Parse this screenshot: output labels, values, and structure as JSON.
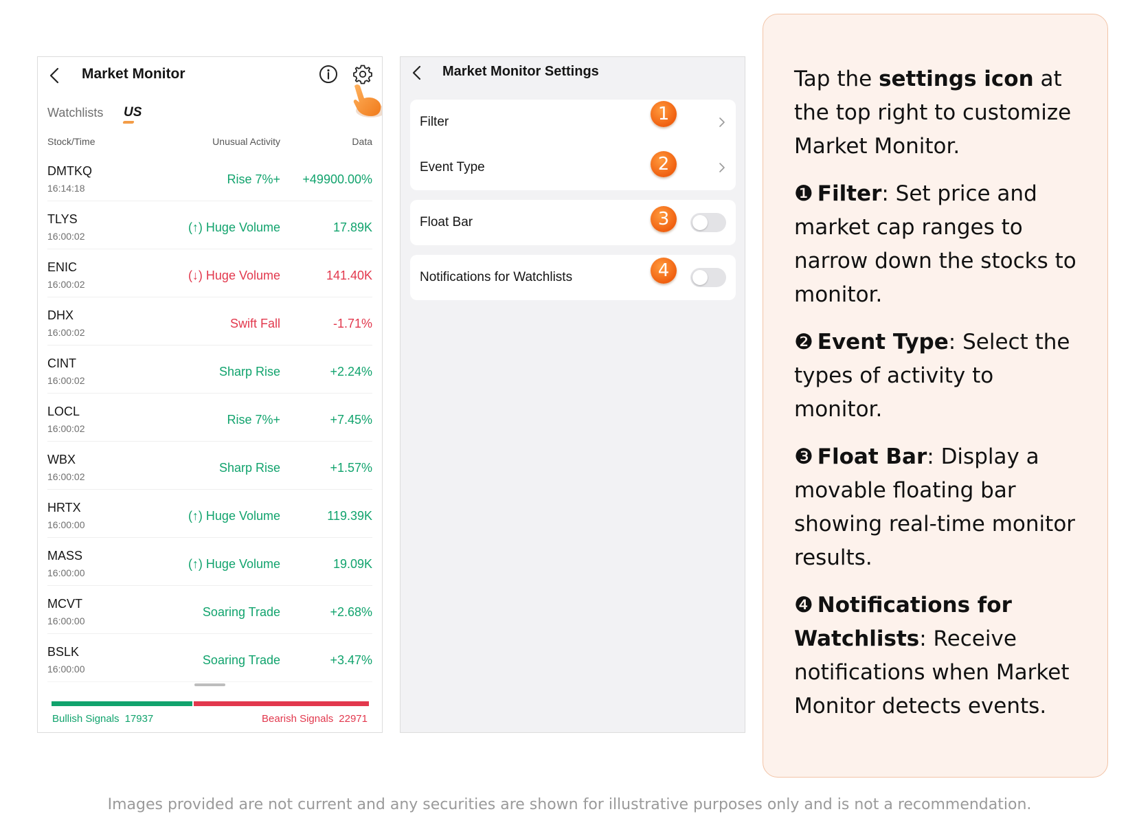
{
  "monitor": {
    "title": "Market Monitor",
    "tabs": [
      "Watchlists",
      "US"
    ],
    "columns": {
      "stock": "Stock/Time",
      "activity": "Unusual Activity",
      "data": "Data"
    },
    "rows": [
      {
        "symbol": "DMTKQ",
        "time": "16:14:18",
        "activity": "Rise 7%+",
        "value": "+49900.00%",
        "color": "green"
      },
      {
        "symbol": "TLYS",
        "time": "16:00:02",
        "activity": "(↑) Huge Volume",
        "value": "17.89K",
        "color": "green"
      },
      {
        "symbol": "ENIC",
        "time": "16:00:02",
        "activity": "(↓) Huge Volume",
        "value": "141.40K",
        "color": "red"
      },
      {
        "symbol": "DHX",
        "time": "16:00:02",
        "activity": "Swift Fall",
        "value": "-1.71%",
        "color": "red"
      },
      {
        "symbol": "CINT",
        "time": "16:00:02",
        "activity": "Sharp Rise",
        "value": "+2.24%",
        "color": "green"
      },
      {
        "symbol": "LOCL",
        "time": "16:00:02",
        "activity": "Rise 7%+",
        "value": "+7.45%",
        "color": "green"
      },
      {
        "symbol": "WBX",
        "time": "16:00:02",
        "activity": "Sharp Rise",
        "value": "+1.57%",
        "color": "green"
      },
      {
        "symbol": "HRTX",
        "time": "16:00:00",
        "activity": "(↑) Huge Volume",
        "value": "119.39K",
        "color": "green"
      },
      {
        "symbol": "MASS",
        "time": "16:00:00",
        "activity": "(↑) Huge Volume",
        "value": "19.09K",
        "color": "green"
      },
      {
        "symbol": "MCVT",
        "time": "16:00:00",
        "activity": "Soaring Trade",
        "value": "+2.68%",
        "color": "green"
      },
      {
        "symbol": "BSLK",
        "time": "16:00:00",
        "activity": "Soaring Trade",
        "value": "+3.47%",
        "color": "green"
      }
    ],
    "signals": {
      "bullish_label": "Bullish Signals",
      "bullish_count": "17937",
      "bearish_label": "Bearish Signals",
      "bearish_count": "22971",
      "bullish_fraction": 0.4439
    }
  },
  "settings": {
    "title": "Market Monitor Settings",
    "items": [
      {
        "label": "Filter",
        "badge": "1"
      },
      {
        "label": "Event Type",
        "badge": "2"
      },
      {
        "label": "Float Bar",
        "badge": "3",
        "toggle": false
      },
      {
        "label": "Notifications for Watchlists",
        "badge": "4",
        "toggle": false
      }
    ]
  },
  "description": {
    "intro_pre": "Tap the ",
    "intro_bold": "settings icon",
    "intro_post": " at the top right to customize Market Monitor.",
    "points": [
      {
        "num": "❶",
        "title": "Filter",
        "text": ": Set price and market cap ranges to narrow down the stocks to monitor."
      },
      {
        "num": "❷",
        "title": "Event Type",
        "text": ": Select the types of activity to monitor."
      },
      {
        "num": "❸",
        "title": "Float Bar",
        "text": ": Display a movable floating bar showing real-time monitor results."
      },
      {
        "num": "❹",
        "title": "Notifications for Watchlists",
        "text": ": Receive notifications when Market Monitor detects events."
      }
    ]
  },
  "disclaimer": "Images provided are not current and any securities are shown for illustrative purposes only and is not a recommendation.",
  "colors": {
    "bullish": "#11a36d",
    "bearish": "#e2384d",
    "accent": "#f06010",
    "panel_bg": "#fdf2ec"
  }
}
